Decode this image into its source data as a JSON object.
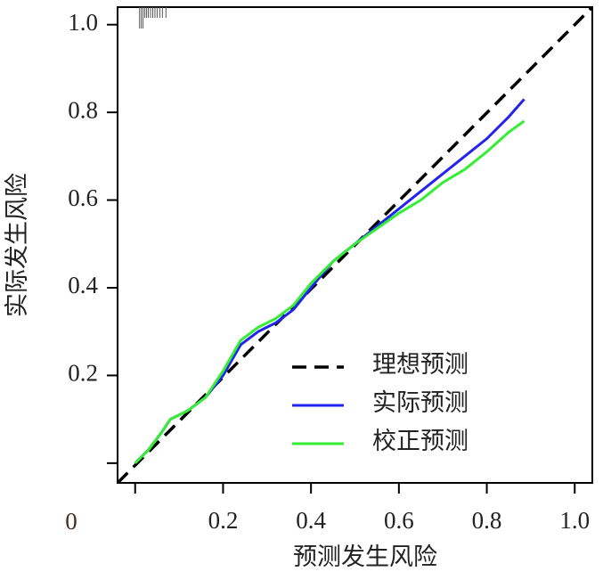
{
  "chart_data": {
    "type": "line",
    "x_label": "预测发生风险",
    "y_label": "实际发生风险",
    "origin_label": "0",
    "x": [
      0,
      0.03,
      0.06,
      0.08,
      0.12,
      0.16,
      0.2,
      0.24,
      0.28,
      0.32,
      0.36,
      0.4,
      0.45,
      0.5,
      0.55,
      0.6,
      0.65,
      0.7,
      0.75,
      0.8,
      0.85,
      0.885
    ],
    "series": [
      {
        "name": "理想预测",
        "color": "#000000",
        "dashed": true,
        "x": [
          -0.04,
          1.04
        ],
        "values": [
          -0.045,
          1.04
        ]
      },
      {
        "name": "实际预测",
        "color": "#2323ee",
        "values": [
          0,
          0.03,
          0.07,
          0.1,
          0.12,
          0.15,
          0.2,
          0.27,
          0.3,
          0.32,
          0.35,
          0.4,
          0.46,
          0.5,
          0.54,
          0.58,
          0.62,
          0.66,
          0.7,
          0.74,
          0.79,
          0.83
        ]
      },
      {
        "name": "校正预测",
        "color": "#33ee33",
        "values": [
          0,
          0.03,
          0.07,
          0.1,
          0.12,
          0.15,
          0.21,
          0.28,
          0.31,
          0.33,
          0.36,
          0.41,
          0.46,
          0.5,
          0.535,
          0.57,
          0.6,
          0.64,
          0.67,
          0.71,
          0.755,
          0.78
        ]
      }
    ],
    "rug": [
      0.01,
      0.014,
      0.018,
      0.022,
      0.026,
      0.03,
      0.035,
      0.04,
      0.045,
      0.05,
      0.056,
      0.062,
      0.07
    ],
    "xlim": [
      -0.04,
      1.04
    ],
    "ylim": [
      -0.045,
      1.04
    ],
    "xticks": [
      0,
      0.2,
      0.4,
      0.6,
      0.8,
      {
        "value": 1,
        "label": "1.0"
      }
    ],
    "yticks": [
      0,
      0.2,
      0.4,
      0.6,
      0.8,
      {
        "value": 1,
        "label": "1.0"
      }
    ],
    "legend": "lower right"
  }
}
